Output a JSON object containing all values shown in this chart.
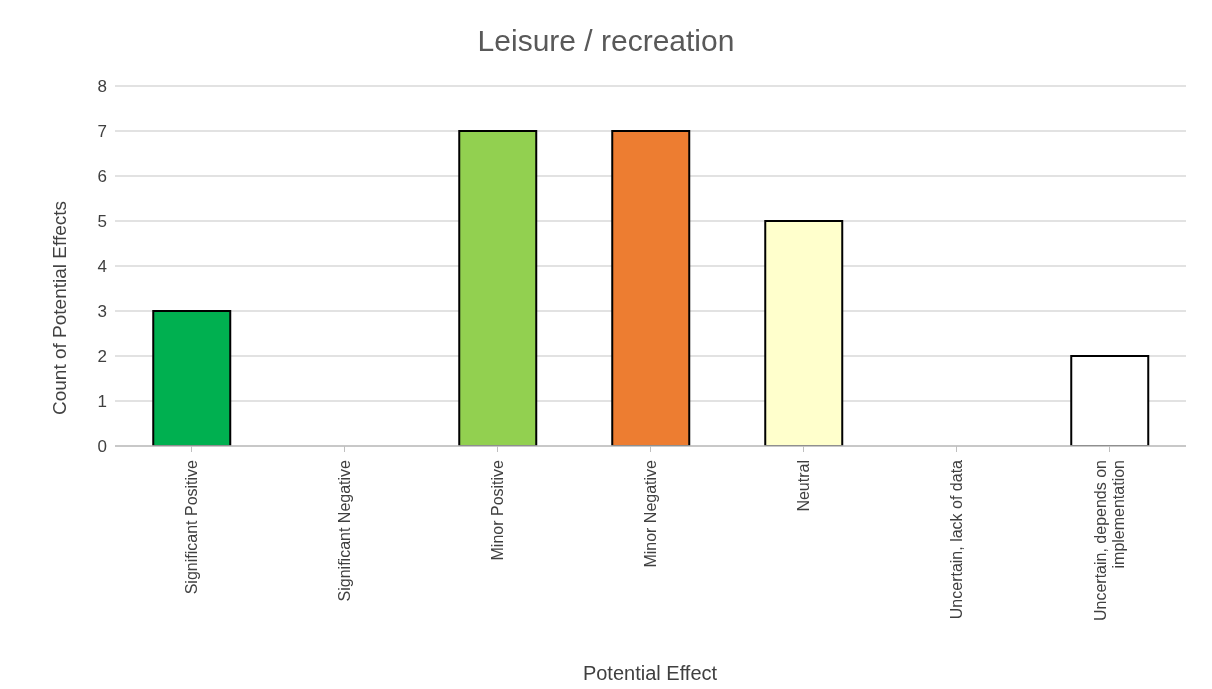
{
  "chart_data": {
    "type": "bar",
    "title": "Leisure / recreation",
    "xlabel": "Potential Effect",
    "ylabel": "Count of Potential Effects",
    "categories": [
      "Significant Positive",
      "Significant Negative",
      "Minor Positive",
      "Minor Negative",
      "Neutral",
      "Uncertain, lack of data",
      "Uncertain, depends on implementation"
    ],
    "values": [
      3,
      0,
      7,
      7,
      5,
      0,
      2
    ],
    "colors": [
      "#00b050",
      "#ffffff",
      "#92d050",
      "#ed7d31",
      "#ffffcc",
      "#ffffff",
      "#ffffff"
    ],
    "ylim": [
      0,
      8
    ],
    "yticks": [
      0,
      1,
      2,
      3,
      4,
      5,
      6,
      7,
      8
    ],
    "grid": "y",
    "legend": false
  }
}
